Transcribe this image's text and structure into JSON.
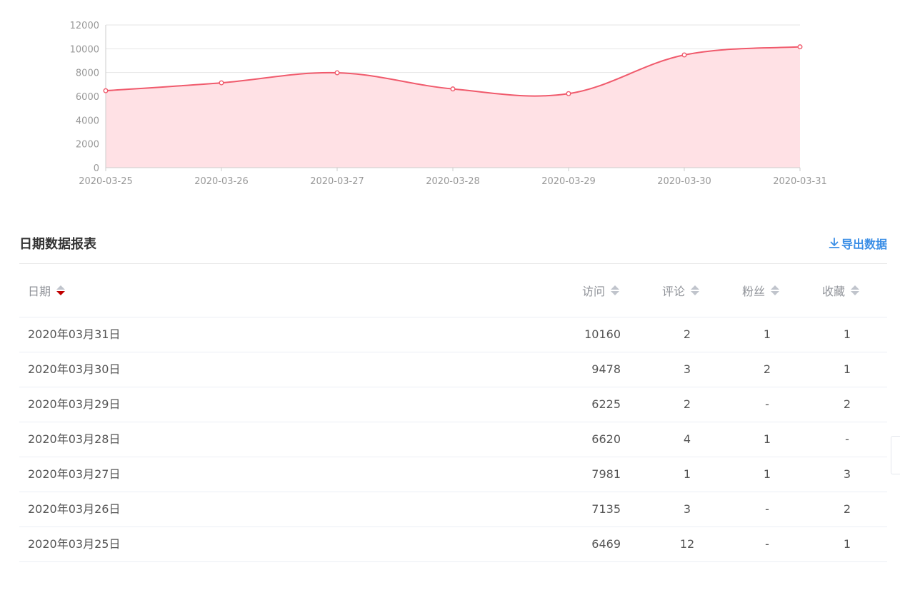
{
  "chart_data": {
    "type": "area",
    "x": [
      "2020-03-25",
      "2020-03-26",
      "2020-03-27",
      "2020-03-28",
      "2020-03-29",
      "2020-03-30",
      "2020-03-31"
    ],
    "series": [
      {
        "values": [
          6469,
          7135,
          7981,
          6620,
          6225,
          9478,
          10160
        ]
      }
    ],
    "ylim": [
      0,
      12000
    ],
    "yticks": [
      "0",
      "2000",
      "4000",
      "6000",
      "8000",
      "10000",
      "12000"
    ],
    "grid": true,
    "line_color": "#f05a6c",
    "fill_color": "#ffe1e5"
  },
  "report": {
    "title": "日期数据报表",
    "export_label": "导出数据"
  },
  "table": {
    "headers": {
      "date": "日期",
      "visits": "访问",
      "comments": "评论",
      "fans": "粉丝",
      "favorites": "收藏"
    },
    "rows": [
      {
        "date": "2020年03月31日",
        "visits": "10160",
        "comments": "2",
        "fans": "1",
        "favorites": "1"
      },
      {
        "date": "2020年03月30日",
        "visits": "9478",
        "comments": "3",
        "fans": "2",
        "favorites": "1"
      },
      {
        "date": "2020年03月29日",
        "visits": "6225",
        "comments": "2",
        "fans": "-",
        "favorites": "2"
      },
      {
        "date": "2020年03月28日",
        "visits": "6620",
        "comments": "4",
        "fans": "1",
        "favorites": "-"
      },
      {
        "date": "2020年03月27日",
        "visits": "7981",
        "comments": "1",
        "fans": "1",
        "favorites": "3"
      },
      {
        "date": "2020年03月26日",
        "visits": "7135",
        "comments": "3",
        "fans": "-",
        "favorites": "2"
      },
      {
        "date": "2020年03月25日",
        "visits": "6469",
        "comments": "12",
        "fans": "-",
        "favorites": "1"
      }
    ]
  },
  "colors": {
    "accent": "#3a8ee6",
    "sort_active": "#c00000"
  }
}
